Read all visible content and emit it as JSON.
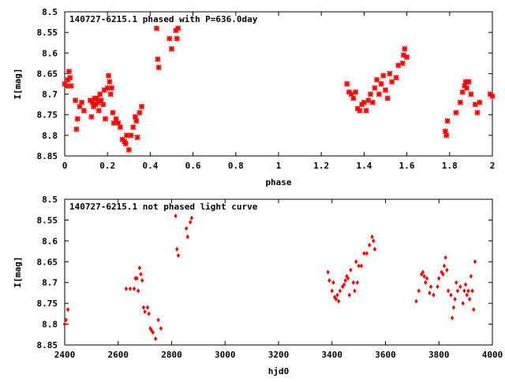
{
  "chart_data": [
    {
      "type": "scatter",
      "title": "140727-6215.1 phased with P=636.0day",
      "xlabel": "phase",
      "ylabel": "I[mag]",
      "xlim": [
        0,
        2
      ],
      "ylim": [
        8.85,
        8.5
      ],
      "y_inverted": true,
      "xticks": [
        "0",
        "0.2",
        "0.4",
        "0.6",
        "0.8",
        "1",
        "1.2",
        "1.4",
        "1.6",
        "1.8",
        "2"
      ],
      "yticks": [
        "8.5",
        "8.55",
        "8.6",
        "8.65",
        "8.7",
        "8.75",
        "8.8",
        "8.85"
      ],
      "grid": false,
      "marker": "cross",
      "series": [
        {
          "color": "#ff0000",
          "x": [
            0.0,
            0.01,
            0.015,
            0.02,
            0.025,
            0.03,
            0.05,
            0.055,
            0.06,
            0.07,
            0.08,
            0.09,
            0.12,
            0.125,
            0.13,
            0.135,
            0.14,
            0.145,
            0.15,
            0.155,
            0.16,
            0.165,
            0.17,
            0.18,
            0.185,
            0.19,
            0.2,
            0.205,
            0.21,
            0.215,
            0.22,
            0.225,
            0.23,
            0.24,
            0.25,
            0.26,
            0.27,
            0.28,
            0.285,
            0.29,
            0.3,
            0.31,
            0.32,
            0.33,
            0.335,
            0.34,
            0.35,
            0.36,
            0.43,
            0.435,
            0.44,
            0.49,
            0.5,
            0.52,
            0.525,
            0.53,
            1.32,
            1.33,
            1.34,
            1.35,
            1.36,
            1.37,
            1.38,
            1.39,
            1.4,
            1.41,
            1.42,
            1.43,
            1.44,
            1.45,
            1.46,
            1.47,
            1.48,
            1.49,
            1.5,
            1.51,
            1.52,
            1.53,
            1.55,
            1.56,
            1.58,
            1.585,
            1.59,
            1.6,
            1.78,
            1.785,
            1.79,
            1.83,
            1.85,
            1.86,
            1.87,
            1.875,
            1.88,
            1.89,
            1.9,
            1.92,
            1.93,
            1.94,
            1.99,
            2.0
          ],
          "y": [
            8.675,
            8.68,
            8.665,
            8.645,
            8.66,
            8.68,
            8.715,
            8.785,
            8.76,
            8.73,
            8.72,
            8.74,
            8.715,
            8.755,
            8.72,
            8.73,
            8.71,
            8.725,
            8.71,
            8.72,
            8.74,
            8.7,
            8.715,
            8.725,
            8.69,
            8.76,
            8.685,
            8.655,
            8.67,
            8.7,
            8.685,
            8.745,
            8.77,
            8.76,
            8.77,
            8.78,
            8.81,
            8.815,
            8.82,
            8.8,
            8.835,
            8.8,
            8.78,
            8.755,
            8.765,
            8.805,
            8.745,
            8.73,
            8.54,
            8.615,
            8.635,
            8.565,
            8.59,
            8.545,
            8.565,
            8.54,
            8.675,
            8.695,
            8.7,
            8.71,
            8.695,
            8.735,
            8.74,
            8.725,
            8.72,
            8.74,
            8.715,
            8.7,
            8.72,
            8.685,
            8.665,
            8.7,
            8.675,
            8.655,
            8.69,
            8.71,
            8.65,
            8.67,
            8.66,
            8.63,
            8.625,
            8.605,
            8.59,
            8.61,
            8.79,
            8.8,
            8.765,
            8.745,
            8.72,
            8.695,
            8.68,
            8.67,
            8.685,
            8.67,
            8.7,
            8.725,
            8.745,
            8.72,
            8.7,
            8.705
          ]
        }
      ]
    },
    {
      "type": "scatter",
      "title": "140727-6215.1 not phased light curve",
      "xlabel": "hjd0",
      "ylabel": "I[mag]",
      "xlim": [
        2400,
        4000
      ],
      "ylim": [
        8.85,
        8.5
      ],
      "y_inverted": true,
      "xticks": [
        "2400",
        "2600",
        "2800",
        "3000",
        "3200",
        "3400",
        "3600",
        "3800",
        "4000"
      ],
      "yticks": [
        "8.5",
        "8.55",
        "8.6",
        "8.65",
        "8.7",
        "8.75",
        "8.8",
        "8.85"
      ],
      "grid": false,
      "marker": "diamond",
      "series": [
        {
          "color": "#ff0000",
          "x": [
            2400,
            2405,
            2412,
            2630,
            2645,
            2660,
            2665,
            2670,
            2675,
            2680,
            2685,
            2690,
            2695,
            2700,
            2710,
            2715,
            2720,
            2725,
            2730,
            2740,
            2750,
            2760,
            2815,
            2820,
            2825,
            2855,
            2860,
            2870,
            2875,
            3385,
            3390,
            3400,
            3405,
            3410,
            3415,
            3420,
            3425,
            3430,
            3440,
            3445,
            3450,
            3455,
            3460,
            3465,
            3470,
            3480,
            3485,
            3490,
            3495,
            3500,
            3510,
            3520,
            3530,
            3540,
            3550,
            3555,
            3560,
            3715,
            3725,
            3735,
            3740,
            3745,
            3750,
            3755,
            3765,
            3770,
            3780,
            3795,
            3800,
            3810,
            3815,
            3820,
            3825,
            3830,
            3835,
            3845,
            3850,
            3855,
            3860,
            3865,
            3870,
            3880,
            3890,
            3895,
            3900,
            3905,
            3910,
            3915,
            3920,
            3925,
            3930,
            3935
          ],
          "y": [
            8.8,
            8.79,
            8.765,
            8.715,
            8.715,
            8.715,
            8.69,
            8.69,
            8.72,
            8.665,
            8.68,
            8.695,
            8.76,
            8.77,
            8.76,
            8.775,
            8.81,
            8.815,
            8.82,
            8.835,
            8.79,
            8.81,
            8.54,
            8.62,
            8.635,
            8.57,
            8.59,
            8.555,
            8.545,
            8.675,
            8.695,
            8.72,
            8.7,
            8.735,
            8.74,
            8.73,
            8.745,
            8.72,
            8.71,
            8.705,
            8.695,
            8.685,
            8.69,
            8.73,
            8.67,
            8.7,
            8.72,
            8.65,
            8.7,
            8.66,
            8.66,
            8.63,
            8.63,
            8.61,
            8.59,
            8.6,
            8.62,
            8.745,
            8.72,
            8.68,
            8.675,
            8.685,
            8.7,
            8.69,
            8.725,
            8.71,
            8.73,
            8.71,
            8.69,
            8.675,
            8.68,
            8.66,
            8.64,
            8.67,
            8.72,
            8.73,
            8.785,
            8.76,
            8.74,
            8.7,
            8.72,
            8.71,
            8.75,
            8.72,
            8.705,
            8.73,
            8.72,
            8.74,
            8.685,
            8.72,
            8.765,
            8.65
          ]
        }
      ]
    }
  ]
}
